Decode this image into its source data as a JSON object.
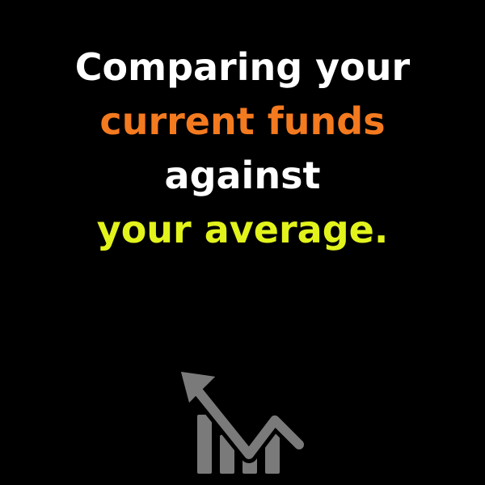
{
  "headline": {
    "lines": [
      {
        "text": "Comparing your",
        "color": "#ffffff"
      },
      {
        "text": "current funds",
        "color": "#f47a1f"
      },
      {
        "text": "against",
        "color": "#ffffff"
      },
      {
        "text": "your average.",
        "color": "#e2f31c"
      }
    ]
  },
  "icon": {
    "name": "chart-trend-icon",
    "color": "#7a7a7a"
  },
  "colors": {
    "background": "#000000",
    "white": "#ffffff",
    "orange": "#f47a1f",
    "yellow": "#e2f31c",
    "icon_gray": "#7a7a7a"
  }
}
